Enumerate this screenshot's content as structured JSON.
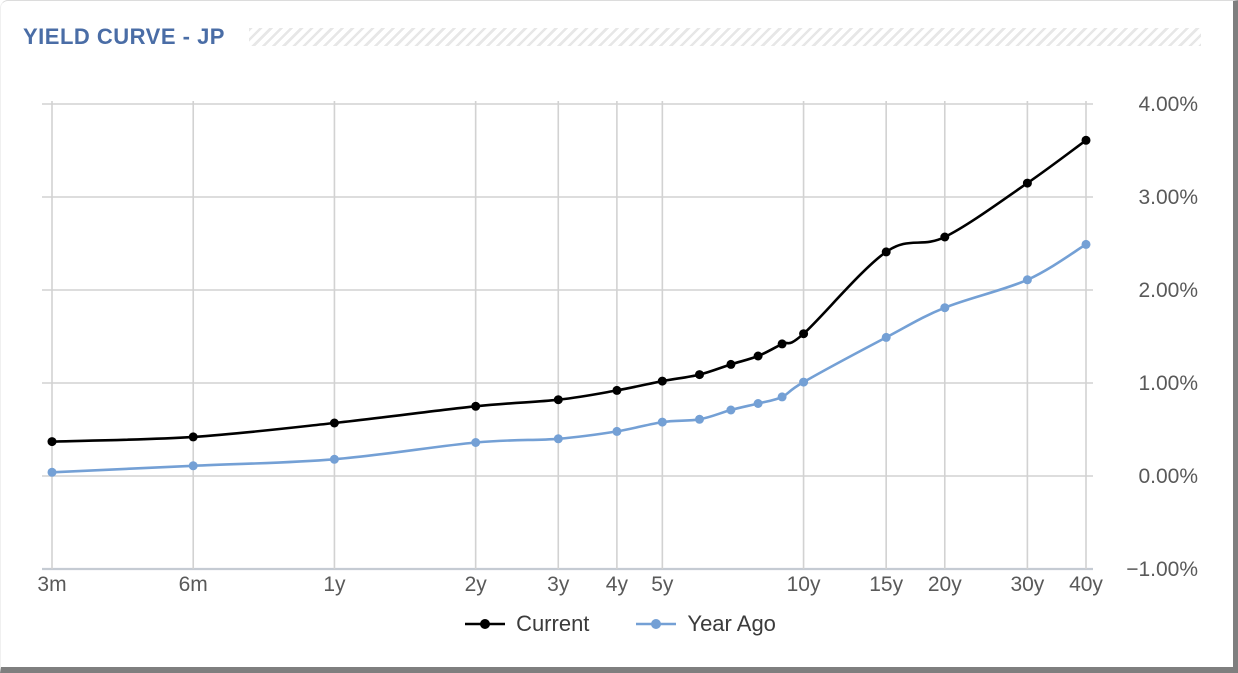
{
  "header": {
    "title": "YIELD CURVE - JP"
  },
  "chart_data": {
    "type": "line",
    "title": "YIELD CURVE - JP",
    "x_scale": "log-maturity",
    "categories": [
      "3m",
      "6m",
      "1y",
      "2y",
      "3y",
      "4y",
      "5y",
      "6y",
      "7y",
      "8y",
      "9y",
      "10y",
      "15y",
      "20y",
      "30y",
      "40y"
    ],
    "maturities_years": [
      0.25,
      0.5,
      1,
      2,
      3,
      4,
      5,
      6,
      7,
      8,
      9,
      10,
      15,
      20,
      30,
      40
    ],
    "labeled_ticks": [
      "3m",
      "6m",
      "1y",
      "2y",
      "3y",
      "4y",
      "5y",
      "10y",
      "15y",
      "20y",
      "30y",
      "40y"
    ],
    "series": [
      {
        "name": "Current",
        "color": "#000000",
        "values": [
          0.37,
          0.42,
          0.57,
          0.75,
          0.82,
          0.92,
          1.02,
          1.09,
          1.2,
          1.29,
          1.42,
          1.53,
          2.41,
          2.57,
          3.15,
          3.61
        ]
      },
      {
        "name": "Year Ago",
        "color": "#74a0d5",
        "values": [
          0.04,
          0.11,
          0.18,
          0.36,
          0.4,
          0.48,
          0.58,
          0.61,
          0.71,
          0.78,
          0.85,
          1.01,
          1.49,
          1.81,
          2.11,
          2.49
        ]
      }
    ],
    "y_ticks": [
      "4.00%",
      "3.00%",
      "2.00%",
      "1.00%",
      "0.00%",
      "−1.00%"
    ],
    "y_tick_values": [
      4,
      3,
      2,
      1,
      0,
      -1
    ],
    "ylim": [
      -1,
      4
    ],
    "unit": "%",
    "grid": true,
    "legend_position": "bottom"
  },
  "legend": {
    "items": [
      {
        "label": "Current",
        "color": "#000000"
      },
      {
        "label": "Year Ago",
        "color": "#74a0d5"
      }
    ]
  },
  "colors": {
    "title": "#4a6da6",
    "gridline": "#d2d2d2",
    "axis_line": "#c5cbd3",
    "tick_label": "#595959"
  }
}
